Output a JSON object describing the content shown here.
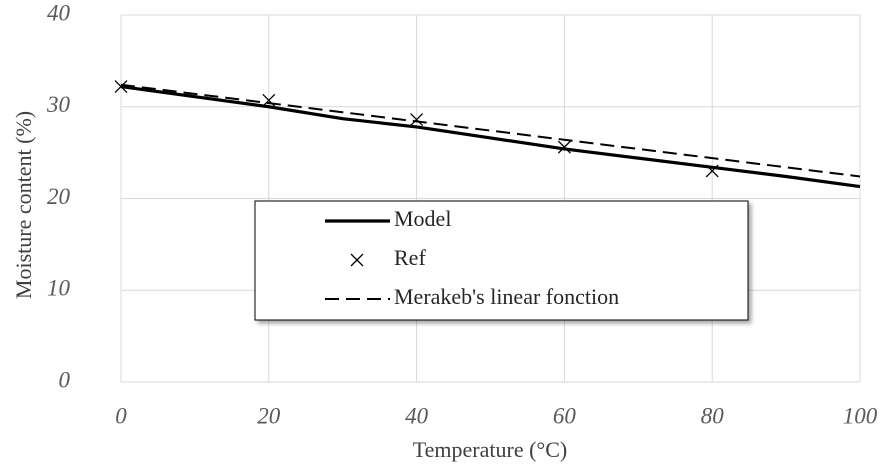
{
  "chart_data": {
    "type": "line",
    "x_label": "Temperature (°C)",
    "y_label": "Moisture content  (%)",
    "xlim": [
      0,
      100
    ],
    "xticks": [
      0,
      20,
      40,
      60,
      80,
      100
    ],
    "ylim": [
      0,
      40
    ],
    "yticks": [
      0,
      10,
      20,
      30,
      40
    ],
    "grid": true,
    "legend": "center",
    "series": [
      {
        "name": "Model",
        "color": "#000000",
        "line_style": "solid",
        "marker": "none",
        "x": [
          0,
          10,
          20,
          30,
          40,
          50,
          60,
          70,
          80,
          90,
          100
        ],
        "values": [
          32.2,
          31.1,
          30.0,
          28.7,
          27.8,
          26.6,
          25.4,
          24.4,
          23.4,
          22.4,
          21.3
        ]
      },
      {
        "name": "Ref",
        "color": "#000000",
        "line_style": "none",
        "marker": "x",
        "x": [
          0,
          20,
          40,
          60,
          80
        ],
        "values": [
          32.2,
          30.7,
          28.6,
          25.6,
          23.0
        ]
      },
      {
        "name": "Merakeb's linear fonction",
        "color": "#000000",
        "line_style": "dashed",
        "marker": "none",
        "x": [
          0,
          100
        ],
        "values": [
          32.4,
          22.4
        ]
      }
    ]
  }
}
